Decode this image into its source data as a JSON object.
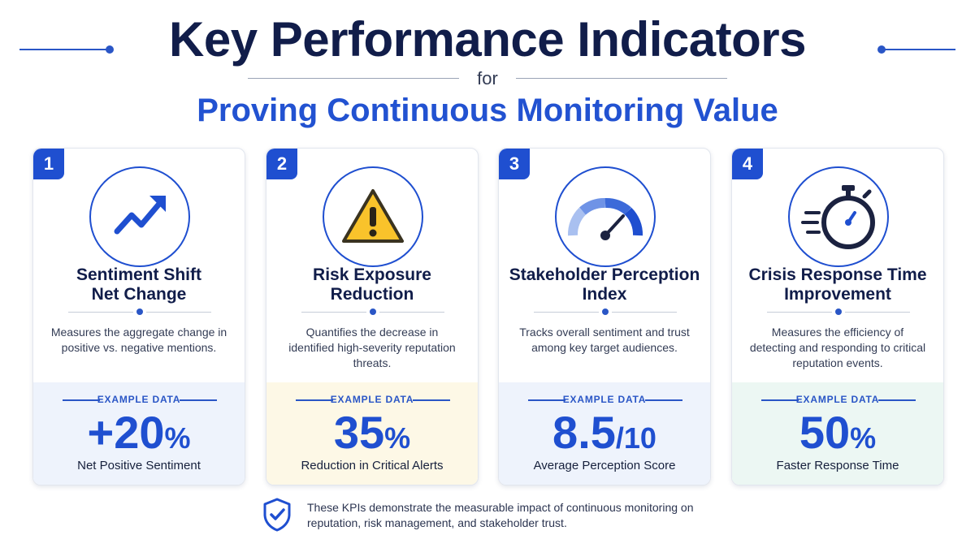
{
  "header": {
    "title": "Key Performance Indicators",
    "connector": "for",
    "subtitle": "Proving Continuous Monitoring Value"
  },
  "colors": {
    "primary_blue": "#1f4fd0",
    "navy": "#111d4a",
    "panel_blue": "#eef3fc",
    "panel_yellow": "#fdf8e6",
    "panel_teal": "#ecf7f3",
    "warning_yellow": "#f9c32b"
  },
  "cards": [
    {
      "number": "1",
      "icon": "trending-up-arrow-icon",
      "title_line1": "Sentiment Shift",
      "title_line2": "Net Change",
      "description": "Measures the aggregate change in positive vs. negative mentions.",
      "example_label": "EXAMPLE DATA",
      "value": "+20",
      "value_suffix": "%",
      "caption": "Net Positive Sentiment",
      "panel_color": "#eef3fc"
    },
    {
      "number": "2",
      "icon": "warning-triangle-icon",
      "title_line1": "Risk Exposure",
      "title_line2": "Reduction",
      "description": "Quantifies the decrease in identified high-severity reputation threats.",
      "example_label": "EXAMPLE DATA",
      "value": "35",
      "value_suffix": "%",
      "caption": "Reduction in Critical Alerts",
      "panel_color": "#fdf8e6"
    },
    {
      "number": "3",
      "icon": "gauge-icon",
      "title_line1": "Stakeholder Perception",
      "title_line2": "Index",
      "description": "Tracks overall sentiment and trust among key target audiences.",
      "example_label": "EXAMPLE DATA",
      "value": "8.5",
      "value_suffix": "/10",
      "caption": "Average Perception Score",
      "panel_color": "#eef3fc"
    },
    {
      "number": "4",
      "icon": "stopwatch-icon",
      "title_line1": "Crisis Response Time",
      "title_line2": "Improvement",
      "description": "Measures the efficiency of detecting and responding to critical reputation events.",
      "example_label": "EXAMPLE DATA",
      "value": "50",
      "value_suffix": "%",
      "caption": "Faster Response Time",
      "panel_color": "#ecf7f3"
    }
  ],
  "footer": {
    "icon": "shield-check-icon",
    "text": "These KPIs demonstrate the measurable impact of continuous monitoring on reputation, risk management, and stakeholder trust."
  }
}
